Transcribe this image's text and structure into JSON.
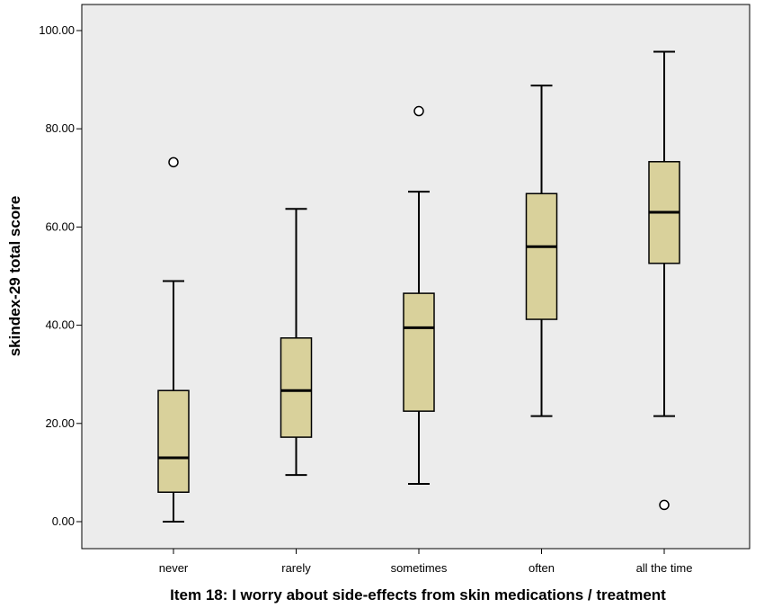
{
  "chart_data": {
    "type": "boxplot",
    "title": "",
    "xlabel": "Item 18: I worry about side-effects from skin medications / treatment",
    "ylabel": "skindex-29 total score",
    "ylim": [
      -5,
      105
    ],
    "yticks": [
      "0.00",
      "20.00",
      "40.00",
      "60.00",
      "80.00",
      "100.00"
    ],
    "ytick_values": [
      0,
      20,
      40,
      60,
      80,
      100
    ],
    "grid": false,
    "colors": {
      "box_fill": "#d9d19b",
      "plot_bg": "#ececec",
      "stroke": "#000000"
    },
    "categories": [
      "never",
      "rarely",
      "sometimes",
      "often",
      "all the time"
    ],
    "boxes": [
      {
        "category": "never",
        "min": 0,
        "q1": 6,
        "median": 13,
        "q3": 26.7,
        "max": 49,
        "outliers": [
          73.2
        ]
      },
      {
        "category": "rarely",
        "min": 9.5,
        "q1": 17.2,
        "median": 26.7,
        "q3": 37.4,
        "max": 63.7,
        "outliers": []
      },
      {
        "category": "sometimes",
        "min": 7.7,
        "q1": 22.5,
        "median": 39.5,
        "q3": 46.5,
        "max": 67.2,
        "outliers": [
          83.6
        ]
      },
      {
        "category": "often",
        "min": 21.5,
        "q1": 41.2,
        "median": 56,
        "q3": 66.8,
        "max": 88.8,
        "outliers": []
      },
      {
        "category": "all the time",
        "min": 21.5,
        "q1": 52.6,
        "median": 63,
        "q3": 73.3,
        "max": 95.7,
        "outliers": [
          3.4
        ]
      }
    ]
  }
}
